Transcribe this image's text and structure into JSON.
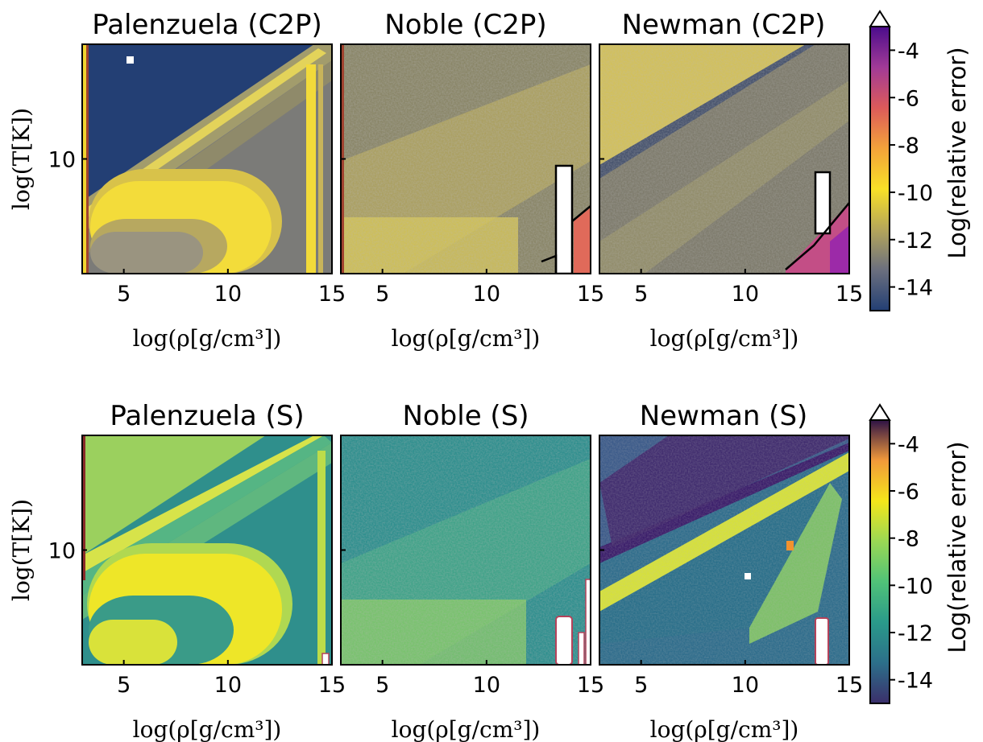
{
  "chart_data": [
    {
      "type": "heatmap",
      "row": "C2P",
      "colormap": "cividis",
      "colorbar": {
        "label": "Log(relative error)",
        "ticks": [
          "-4",
          "-6",
          "-8",
          "-10",
          "-12",
          "-14"
        ],
        "tick_values": [
          -4,
          -6,
          -8,
          -10,
          -12,
          -14
        ],
        "range": [
          -15,
          -3
        ],
        "extend": "max",
        "colors": [
          "#233f74",
          "#6b6f7e",
          "#b5a65a",
          "#f8e027",
          "#f3a23a",
          "#dc5a5a",
          "#a13a97",
          "#4b0c8c"
        ]
      },
      "panels": [
        {
          "title": "Palenzuela (C2P)",
          "xlabel": "log(ρ[g/cm³])",
          "ylabel": "log(T[K])",
          "xticks": [
            "5",
            "10",
            "15"
          ],
          "yticks": [
            "10"
          ],
          "xlim": [
            3,
            15
          ],
          "ylim": [
            4,
            16
          ],
          "typical_error": "-10 to -15"
        },
        {
          "title": "Noble (C2P)",
          "xlabel": "log(ρ[g/cm³])",
          "xticks": [
            "5",
            "10",
            "15"
          ],
          "xlim": [
            3,
            15
          ],
          "ylim": [
            4,
            16
          ],
          "typical_error": "-10 to -13",
          "failure_region": "high density, low temperature"
        },
        {
          "title": "Newman (C2P)",
          "xlabel": "log(ρ[g/cm³])",
          "xticks": [
            "5",
            "10",
            "15"
          ],
          "xlim": [
            3,
            15
          ],
          "ylim": [
            4,
            16
          ],
          "typical_error": "-10 to -14",
          "failure_region": "high density, low temperature"
        }
      ]
    },
    {
      "type": "heatmap",
      "row": "S",
      "colormap": "viridis",
      "colorbar": {
        "label": "Log(relative error)",
        "ticks": [
          "-4",
          "-6",
          "-8",
          "-10",
          "-12",
          "-14"
        ],
        "tick_values": [
          -4,
          -6,
          -8,
          -10,
          -12,
          -14
        ],
        "range": [
          -15,
          -3
        ],
        "extend": "max",
        "colors": [
          "#3b2f6b",
          "#2c6f8a",
          "#2a9a8a",
          "#50c278",
          "#9ad854",
          "#f4e61a",
          "#f29a3a",
          "#2d1245"
        ]
      },
      "panels": [
        {
          "title": "Palenzuela (S)",
          "xlabel": "log(ρ[g/cm³])",
          "ylabel": "log(T[K])",
          "xticks": [
            "5",
            "10",
            "15"
          ],
          "yticks": [
            "10"
          ],
          "xlim": [
            3,
            15
          ],
          "ylim": [
            4,
            16
          ],
          "typical_error": "-9 to -13"
        },
        {
          "title": "Noble (S)",
          "xlabel": "log(ρ[g/cm³])",
          "xticks": [
            "5",
            "10",
            "15"
          ],
          "xlim": [
            3,
            15
          ],
          "ylim": [
            4,
            16
          ],
          "typical_error": "-10 to -13",
          "failure_region": "high density, low temperature"
        },
        {
          "title": "Newman (S)",
          "xlabel": "log(ρ[g/cm³])",
          "xticks": [
            "5",
            "10",
            "15"
          ],
          "xlim": [
            3,
            15
          ],
          "ylim": [
            4,
            16
          ],
          "typical_error": "-5 to -14",
          "failure_region": "high density, low temperature"
        }
      ]
    }
  ]
}
